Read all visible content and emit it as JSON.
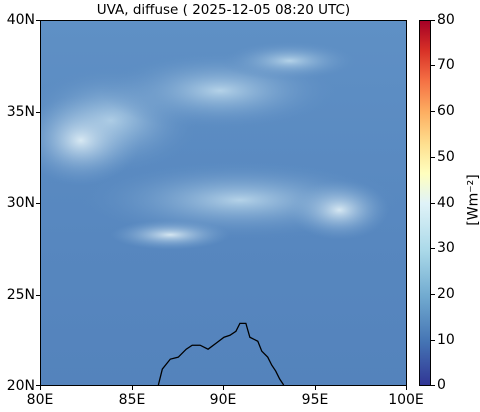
{
  "title": "UVA, diffuse ( 2025-12-05 08:20 UTC)",
  "map": {
    "lon_range": [
      80,
      100
    ],
    "lat_range": [
      20,
      40
    ],
    "x_ticks": [
      "80E",
      "85E",
      "90E",
      "95E",
      "100E"
    ],
    "y_ticks": [
      "40N",
      "35N",
      "30N",
      "25N",
      "20N"
    ],
    "background_color": "#5b8cc2",
    "cloud_color": "#c9e2ef"
  },
  "colorbar": {
    "ticks": [
      "80",
      "70",
      "60",
      "50",
      "40",
      "30",
      "20",
      "10",
      "0"
    ],
    "unit": "[Wm⁻²]",
    "range": [
      0,
      80
    ],
    "colormap": "RdYlBu_r"
  }
}
